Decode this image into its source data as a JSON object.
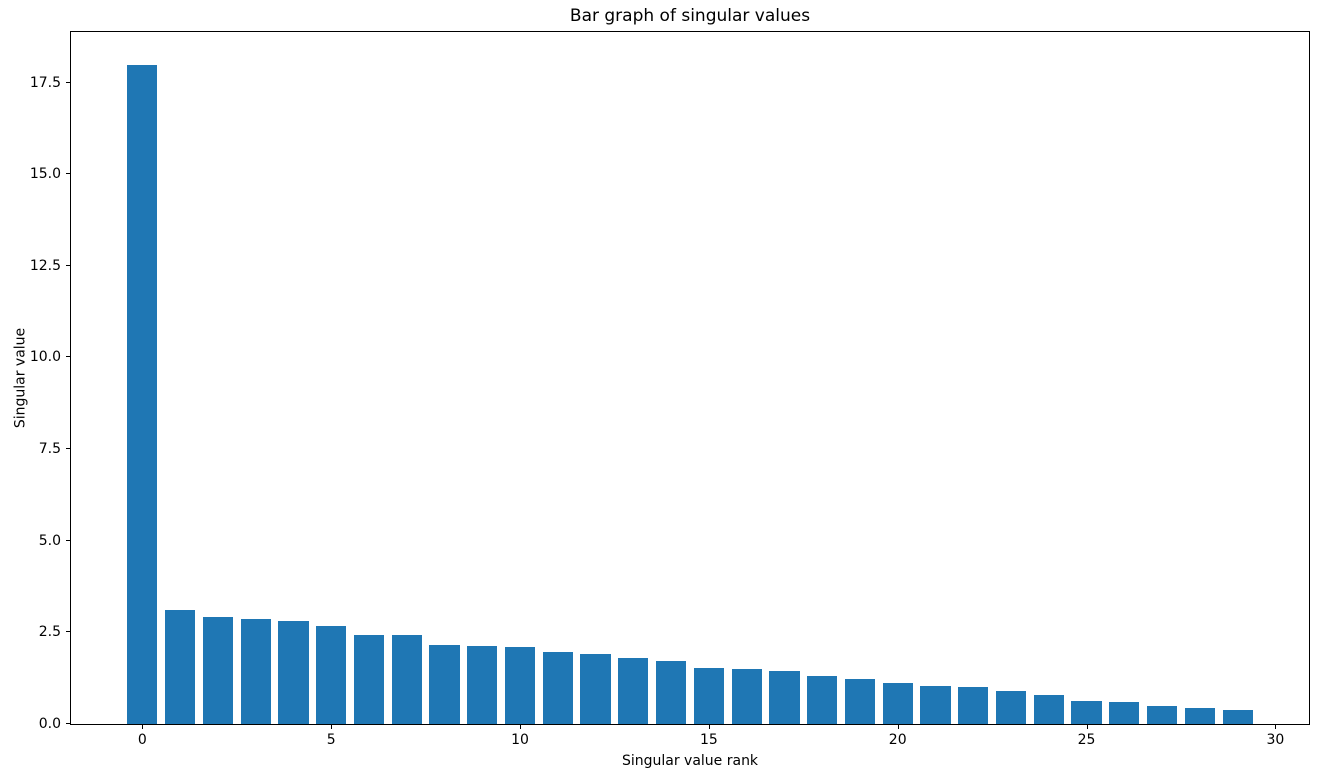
{
  "chart_data": {
    "type": "bar",
    "title": "Bar graph of singular values",
    "xlabel": "Singular value rank",
    "ylabel": "Singular value",
    "categories": [
      0,
      1,
      2,
      3,
      4,
      5,
      6,
      7,
      8,
      9,
      10,
      11,
      12,
      13,
      14,
      15,
      16,
      17,
      18,
      19,
      20,
      21,
      22,
      23,
      24,
      25,
      26,
      27,
      28,
      29
    ],
    "values": [
      17.98,
      3.11,
      2.91,
      2.87,
      2.8,
      2.68,
      2.43,
      2.42,
      2.15,
      2.12,
      2.09,
      1.97,
      1.9,
      1.79,
      1.72,
      1.54,
      1.49,
      1.46,
      1.32,
      1.24,
      1.11,
      1.04,
      1.01,
      0.9,
      0.78,
      0.64,
      0.59,
      0.48,
      0.43,
      0.37
    ],
    "bar_color": "#1f77b4",
    "bar_width": 0.8,
    "xlim": [
      -1.89,
      30.89
    ],
    "ylim": [
      0,
      18.88
    ],
    "x_ticks": [
      0,
      5,
      10,
      15,
      20,
      25,
      30
    ],
    "x_tick_labels": [
      "0",
      "5",
      "10",
      "15",
      "20",
      "25",
      "30"
    ],
    "y_ticks": [
      0.0,
      2.5,
      5.0,
      7.5,
      10.0,
      12.5,
      15.0,
      17.5
    ],
    "y_tick_labels": [
      "0.0",
      "2.5",
      "5.0",
      "7.5",
      "10.0",
      "12.5",
      "15.0",
      "17.5"
    ],
    "grid": false,
    "legend": null,
    "spine_color": "#000000",
    "background_color": "#ffffff"
  }
}
